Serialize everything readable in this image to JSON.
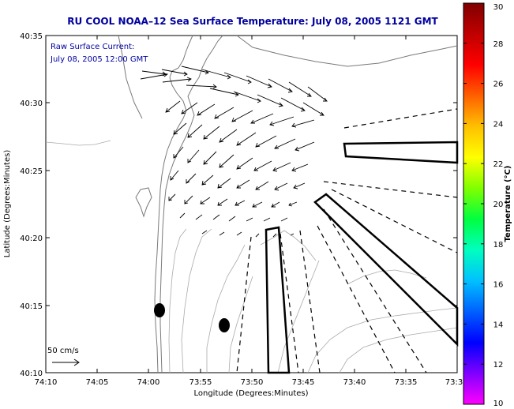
{
  "title": "RU COOL  NOAA–12  Sea Surface Temperature:  July 08, 2005 1121 GMT",
  "legend": {
    "line1": "Raw Surface Current:",
    "line2": "July 08, 2005 12:00 GMT",
    "scale_label": "50 cm/s"
  },
  "axes": {
    "xlabel": "Longitude (Degrees:Minutes)",
    "ylabel": "Latitude (Degrees:Minutes)",
    "x_ticks": [
      "74:10",
      "74:05",
      "74:00",
      "73:55",
      "73:50",
      "73:45",
      "73:40",
      "73:35",
      "73:3"
    ],
    "y_ticks": [
      "40:35",
      "40:30",
      "40:25",
      "40:20",
      "40:15",
      "40:10"
    ]
  },
  "colorbar": {
    "label": "Temperature (°C)",
    "min": 10,
    "max": 30,
    "ticks": [
      "30",
      "28",
      "26",
      "24",
      "22",
      "20",
      "18",
      "16",
      "14",
      "12",
      "10"
    ],
    "colors": [
      "#ff00ff",
      "#8000ff",
      "#0000ff",
      "#0060ff",
      "#00c0ff",
      "#00ffc0",
      "#00ff40",
      "#80ff00",
      "#ffff00",
      "#ffc000",
      "#ff6000",
      "#ff0000",
      "#c00000",
      "#800000"
    ]
  }
}
